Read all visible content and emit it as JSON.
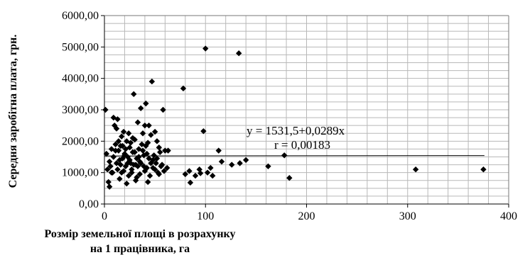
{
  "chart_data": {
    "type": "scatter",
    "title": "",
    "xlabel_lines": [
      "Розмір земельної площі в розрахунку",
      "на 1 працівника, га"
    ],
    "ylabel": "Середня заробітна плата, грн.",
    "xlim": [
      0,
      400
    ],
    "ylim": [
      0,
      6000
    ],
    "x_ticks": [
      "0",
      "100",
      "200",
      "300",
      "400"
    ],
    "y_ticks": [
      "0,00",
      "1000,00",
      "2000,00",
      "3000,00",
      "4000,00",
      "5000,00",
      "6000,00"
    ],
    "grid": true,
    "legend": "none",
    "marker": "diamond",
    "marker_color": "#000000",
    "trendline": {
      "equation": "y = 1531,5+0,0289x",
      "r_label": "r = 0,00183",
      "intercept": 1531.5,
      "slope": 0.0289,
      "x_range": [
        0,
        376
      ]
    },
    "points": [
      [
        1,
        3000
      ],
      [
        2,
        1600
      ],
      [
        3,
        1100
      ],
      [
        4,
        700
      ],
      [
        5,
        1350
      ],
      [
        6,
        1200
      ],
      [
        7,
        1750
      ],
      [
        8,
        1000
      ],
      [
        9,
        2750
      ],
      [
        10,
        2500
      ],
      [
        11,
        1900
      ],
      [
        12,
        1300
      ],
      [
        13,
        2700
      ],
      [
        14,
        1700
      ],
      [
        15,
        1400
      ],
      [
        16,
        1850
      ],
      [
        17,
        1000
      ],
      [
        18,
        1450
      ],
      [
        19,
        2300
      ],
      [
        20,
        1600
      ],
      [
        21,
        1200
      ],
      [
        22,
        2000
      ],
      [
        23,
        1500
      ],
      [
        24,
        900
      ],
      [
        25,
        1800
      ],
      [
        26,
        1300
      ],
      [
        27,
        1100
      ],
      [
        28,
        2100
      ],
      [
        29,
        3500
      ],
      [
        30,
        1650
      ],
      [
        31,
        1250
      ],
      [
        32,
        850
      ],
      [
        33,
        2600
      ],
      [
        34,
        1500
      ],
      [
        35,
        1350
      ],
      [
        36,
        3050
      ],
      [
        37,
        1900
      ],
      [
        38,
        1700
      ],
      [
        39,
        1200
      ],
      [
        40,
        2500
      ],
      [
        41,
        3200
      ],
      [
        42,
        1150
      ],
      [
        43,
        1950
      ],
      [
        44,
        1450
      ],
      [
        45,
        900
      ],
      [
        46,
        2200
      ],
      [
        47,
        3900
      ],
      [
        48,
        1400
      ],
      [
        49,
        1550
      ],
      [
        50,
        1100
      ],
      [
        51,
        1300
      ],
      [
        52,
        2000
      ],
      [
        53,
        1000
      ],
      [
        54,
        1800
      ],
      [
        55,
        1650
      ],
      [
        56,
        1200
      ],
      [
        58,
        3000
      ],
      [
        59,
        1050
      ],
      [
        60,
        1700
      ],
      [
        62,
        1150
      ],
      [
        63,
        1700
      ],
      [
        5,
        550
      ],
      [
        7,
        1000
      ],
      [
        9,
        1500
      ],
      [
        11,
        1700
      ],
      [
        12,
        2400
      ],
      [
        13,
        1100
      ],
      [
        14,
        2000
      ],
      [
        15,
        800
      ],
      [
        16,
        1250
      ],
      [
        17,
        2150
      ],
      [
        18,
        1850
      ],
      [
        19,
        1050
      ],
      [
        20,
        1550
      ],
      [
        21,
        1750
      ],
      [
        22,
        650
      ],
      [
        23,
        1300
      ],
      [
        24,
        2250
      ],
      [
        25,
        1400
      ],
      [
        26,
        1950
      ],
      [
        27,
        1000
      ],
      [
        28,
        1650
      ],
      [
        29,
        1250
      ],
      [
        30,
        2050
      ],
      [
        31,
        750
      ],
      [
        32,
        1450
      ],
      [
        33,
        1200
      ],
      [
        34,
        1750
      ],
      [
        35,
        950
      ],
      [
        36,
        1300
      ],
      [
        38,
        2250
      ],
      [
        39,
        1550
      ],
      [
        40,
        1050
      ],
      [
        41,
        1850
      ],
      [
        42,
        1600
      ],
      [
        43,
        700
      ],
      [
        44,
        2500
      ],
      [
        46,
        1300
      ],
      [
        48,
        1150
      ],
      [
        50,
        2300
      ],
      [
        52,
        1450
      ],
      [
        54,
        950
      ],
      [
        57,
        1250
      ],
      [
        78,
        3680
      ],
      [
        80,
        950
      ],
      [
        84,
        1050
      ],
      [
        85,
        680
      ],
      [
        90,
        900
      ],
      [
        94,
        1100
      ],
      [
        95,
        980
      ],
      [
        98,
        2320
      ],
      [
        100,
        4950
      ],
      [
        102,
        1000
      ],
      [
        105,
        1150
      ],
      [
        107,
        900
      ],
      [
        113,
        1700
      ],
      [
        116,
        1350
      ],
      [
        126,
        1250
      ],
      [
        133,
        4800
      ],
      [
        134,
        1300
      ],
      [
        140,
        1400
      ],
      [
        162,
        1200
      ],
      [
        178,
        1550
      ],
      [
        183,
        830
      ],
      [
        308,
        1100
      ],
      [
        375,
        1100
      ]
    ]
  }
}
